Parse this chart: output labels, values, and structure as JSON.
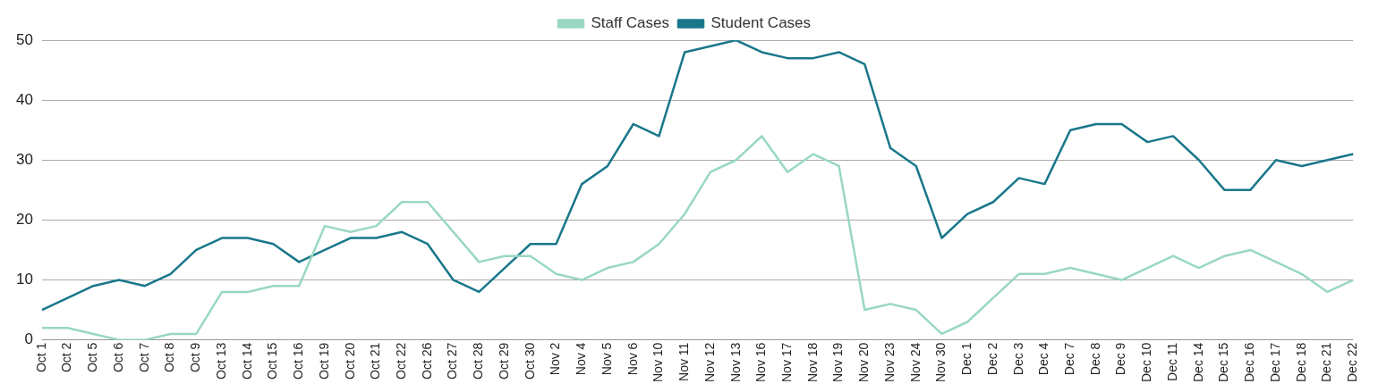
{
  "chart_data": {
    "type": "line",
    "categories": [
      "Oct 1",
      "Oct 2",
      "Oct 5",
      "Oct 6",
      "Oct 7",
      "Oct 8",
      "Oct 9",
      "Oct 13",
      "Oct 14",
      "Oct 15",
      "Oct 16",
      "Oct 19",
      "Oct 20",
      "Oct 21",
      "Oct 22",
      "Oct 26",
      "Oct 27",
      "Oct 28",
      "Oct 29",
      "Oct 30",
      "Nov 2",
      "Nov 4",
      "Nov 5",
      "Nov 6",
      "Nov 10",
      "Nov 11",
      "Nov 12",
      "Nov 13",
      "Nov 16",
      "Nov 17",
      "Nov 18",
      "Nov 19",
      "Nov 20",
      "Nov 23",
      "Nov 24",
      "Nov 30",
      "Dec 1",
      "Dec 2",
      "Dec 3",
      "Dec 4",
      "Dec 7",
      "Dec 8",
      "Dec 9",
      "Dec 10",
      "Dec 11",
      "Dec 14",
      "Dec 15",
      "Dec 16",
      "Dec 17",
      "Dec 18",
      "Dec 21",
      "Dec 22"
    ],
    "series": [
      {
        "name": "Staff Cases",
        "color": "#99d8c0",
        "values": [
          2,
          2,
          1,
          0,
          0,
          1,
          1,
          8,
          8,
          9,
          9,
          19,
          18,
          19,
          23,
          23,
          18,
          13,
          14,
          14,
          11,
          10,
          12,
          13,
          16,
          21,
          28,
          30,
          34,
          28,
          31,
          29,
          5,
          6,
          5,
          1,
          3,
          7,
          11,
          11,
          12,
          11,
          10,
          12,
          14,
          12,
          14,
          15,
          13,
          11,
          8,
          10
        ]
      },
      {
        "name": "Student Cases",
        "color": "#19778a",
        "values": [
          5,
          7,
          9,
          10,
          9,
          11,
          15,
          17,
          17,
          16,
          13,
          15,
          17,
          17,
          18,
          16,
          10,
          8,
          12,
          16,
          16,
          26,
          29,
          36,
          34,
          48,
          49,
          50,
          48,
          47,
          47,
          48,
          46,
          32,
          29,
          17,
          21,
          23,
          27,
          26,
          35,
          36,
          36,
          33,
          34,
          30,
          25,
          25,
          30,
          29,
          30,
          31
        ]
      }
    ],
    "ylim": [
      0,
      50
    ],
    "yticks": [
      0,
      10,
      20,
      30,
      40,
      50
    ],
    "grid": "y",
    "legend": "top",
    "marker": "none",
    "line_style": "solid"
  }
}
